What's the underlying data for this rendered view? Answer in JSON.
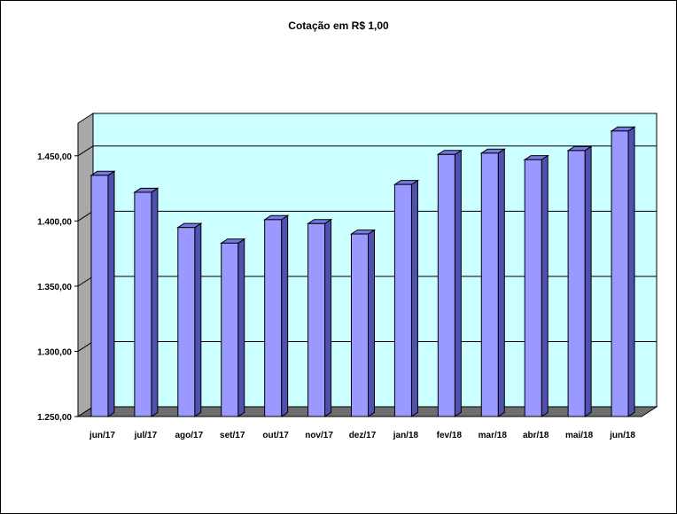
{
  "chart_data": {
    "type": "bar",
    "title": "Cotação em R$ 1,00",
    "xlabel": "",
    "ylabel": "",
    "categories": [
      "jun/17",
      "jul/17",
      "ago/17",
      "set/17",
      "out/17",
      "nov/17",
      "dez/17",
      "jan/18",
      "fev/18",
      "mar/18",
      "abr/18",
      "mai/18",
      "jun/18"
    ],
    "values": [
      1435,
      1422,
      1395,
      1383,
      1401,
      1398,
      1390,
      1428,
      1451,
      1452,
      1447,
      1454,
      1469
    ],
    "ylim": [
      1250,
      1475
    ],
    "yticks": [
      1250,
      1300,
      1350,
      1400,
      1450
    ],
    "ytick_labels": [
      "1.250,00",
      "1.300,00",
      "1.350,00",
      "1.400,00",
      "1.450,00"
    ],
    "grid": true,
    "legend": "none",
    "colors": {
      "bar_front": "#9999ff",
      "bar_side": "#5050b0",
      "bar_top": "#7878e0",
      "wall": "#ccffff",
      "side_wall": "#a8a8a8",
      "floor": "#6e6e6e"
    }
  }
}
